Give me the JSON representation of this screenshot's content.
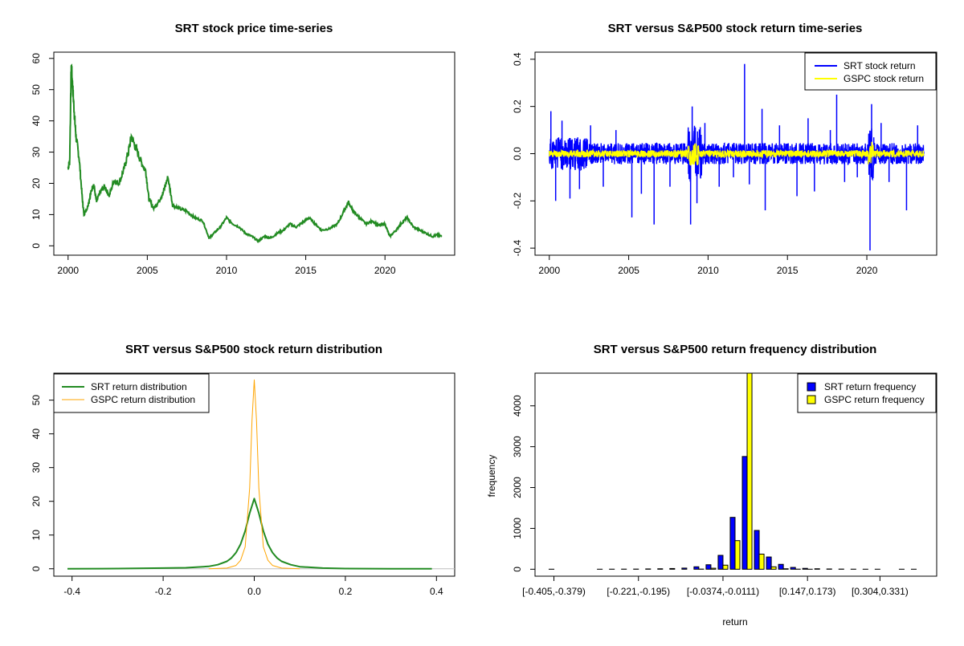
{
  "colors": {
    "price": "#228B22",
    "srt_return": "#0000FF",
    "gspc_return": "#FFFF00",
    "srt_density": "#228B22",
    "gspc_density": "#FFA500",
    "srt_bar": "#0000FF",
    "gspc_bar": "#FFFF00",
    "axis": "#000000"
  },
  "chart_data": [
    {
      "type": "line",
      "title": "SRT stock price time-series",
      "xlabel": "",
      "ylabel": "",
      "xlim": [
        2000,
        2023.6
      ],
      "ylim": [
        0,
        60
      ],
      "x_ticks": [
        "2000",
        "2005",
        "2010",
        "2015",
        "2020"
      ],
      "y_ticks": [
        "0",
        "10",
        "20",
        "30",
        "40",
        "50",
        "60"
      ],
      "series": [
        {
          "x": [
            2000.0,
            2000.1,
            2000.2,
            2000.3,
            2000.4,
            2000.5,
            2000.7,
            2000.9,
            2001.0,
            2001.2,
            2001.4,
            2001.6,
            2001.8,
            2002.0,
            2002.3,
            2002.6,
            2002.9,
            2003.2,
            2003.5,
            2003.8,
            2004.0,
            2004.3,
            2004.6,
            2004.9,
            2005.1,
            2005.4,
            2005.7,
            2006.0,
            2006.3,
            2006.6,
            2007.0,
            2007.5,
            2008.0,
            2008.5,
            2008.9,
            2009.2,
            2009.6,
            2010.0,
            2010.4,
            2010.8,
            2011.2,
            2011.6,
            2012.0,
            2012.4,
            2012.8,
            2013.2,
            2013.6,
            2014.0,
            2014.4,
            2014.8,
            2015.2,
            2015.6,
            2016.0,
            2016.5,
            2017.0,
            2017.4,
            2017.7,
            2018.0,
            2018.4,
            2018.8,
            2019.2,
            2019.6,
            2020.0,
            2020.3,
            2020.7,
            2021.0,
            2021.4,
            2021.8,
            2022.2,
            2022.6,
            2023.0,
            2023.3,
            2023.6
          ],
          "y": [
            25,
            27,
            58,
            50,
            42,
            35,
            28,
            15,
            10,
            12,
            16,
            20,
            14,
            17,
            19,
            16,
            21,
            20,
            24,
            30,
            35,
            31,
            27,
            24,
            15,
            12,
            14,
            17,
            22,
            13,
            12,
            11,
            9,
            8,
            2.5,
            4,
            6,
            9,
            7,
            6,
            4,
            3,
            1.5,
            3,
            2.5,
            4,
            5,
            7,
            6,
            7.5,
            9,
            7,
            5,
            5.5,
            7,
            11,
            14,
            11,
            9,
            7,
            8,
            6.5,
            7,
            3,
            5,
            7,
            9,
            6,
            5,
            4,
            3,
            3.5,
            3
          ]
        }
      ]
    },
    {
      "type": "line",
      "title": "SRT versus S&P500 stock return time-series",
      "xlabel": "",
      "ylabel": "",
      "xlim": [
        2000,
        2023.6
      ],
      "ylim": [
        -0.4,
        0.4
      ],
      "x_ticks": [
        "2000",
        "2005",
        "2010",
        "2015",
        "2020"
      ],
      "y_ticks": [
        "-0.4",
        "-0.2",
        "0.0",
        "0.2",
        "0.4"
      ],
      "legend": "top-right",
      "series": [
        {
          "name": "SRT stock return",
          "style": "blue noisy return band, typical amplitude about ±0.05, spikes to about ±0.25, extremes 0.38 (2012.3) and -0.41 (2020.2)"
        },
        {
          "name": "GSPC stock return",
          "style": "yellow return band, typical amplitude about ±0.015, bursts near 2008.9 and 2020.2"
        }
      ]
    },
    {
      "type": "line",
      "title": "SRT versus S&P500 stock return distribution",
      "xlabel": "",
      "ylabel": "",
      "xlim": [
        -0.42,
        0.42
      ],
      "ylim": [
        0,
        57
      ],
      "x_ticks": [
        "-0.4",
        "-0.2",
        "0.0",
        "0.2",
        "0.4"
      ],
      "y_ticks": [
        "0",
        "10",
        "20",
        "30",
        "40",
        "50"
      ],
      "legend": "top-left",
      "series": [
        {
          "name": "SRT return distribution",
          "x": [
            -0.41,
            -0.3,
            -0.2,
            -0.15,
            -0.1,
            -0.08,
            -0.06,
            -0.05,
            -0.04,
            -0.03,
            -0.02,
            -0.01,
            0.0,
            0.01,
            0.02,
            0.03,
            0.04,
            0.05,
            0.06,
            0.08,
            0.1,
            0.15,
            0.2,
            0.3,
            0.39
          ],
          "y": [
            0,
            0.05,
            0.2,
            0.3,
            0.7,
            1.2,
            2.2,
            3.2,
            4.8,
            7.3,
            11.2,
            16.5,
            20.8,
            16.5,
            11.2,
            7.3,
            4.8,
            3.2,
            2.2,
            1.2,
            0.6,
            0.2,
            0.05,
            0,
            0
          ]
        },
        {
          "name": "GSPC return distribution",
          "x": [
            -0.1,
            -0.06,
            -0.04,
            -0.03,
            -0.02,
            -0.01,
            -0.005,
            0.0,
            0.005,
            0.01,
            0.02,
            0.03,
            0.04,
            0.06,
            0.1
          ],
          "y": [
            0,
            0.2,
            1,
            2.5,
            6.5,
            24,
            44,
            56,
            44,
            24,
            6.5,
            2.5,
            1,
            0.2,
            0
          ]
        }
      ]
    },
    {
      "type": "bar",
      "title": "SRT versus S&P500 return frequency distribution",
      "xlabel": "return",
      "ylabel": "frequency",
      "ylim": [
        0,
        4800
      ],
      "y_ticks": [
        "0",
        "1000",
        "2000",
        "3000",
        "4000"
      ],
      "x_tick_labels": [
        "[-0.405,-0.379)",
        "[-0.221,-0.195)",
        "[-0.0374,-0.0111)",
        "[0.147,0.173)",
        "[0.304,0.331)"
      ],
      "x_tick_bins": [
        0,
        7,
        14,
        21,
        27
      ],
      "legend": "top-right",
      "series": [
        {
          "name": "SRT return frequency",
          "values": [
            1,
            0,
            0,
            0,
            1,
            2,
            3,
            4,
            8,
            12,
            18,
            28,
            60,
            110,
            340,
            1270,
            2760,
            950,
            300,
            120,
            45,
            22,
            12,
            7,
            4,
            2,
            1,
            1,
            0,
            1,
            1
          ]
        },
        {
          "name": "GSPC return frequency",
          "values": [
            0,
            0,
            0,
            0,
            0,
            0,
            0,
            0,
            0,
            0,
            0,
            0,
            4,
            25,
            100,
            700,
            4800,
            370,
            60,
            12,
            3,
            1,
            0,
            0,
            0,
            0,
            0,
            0,
            0,
            0,
            0
          ]
        }
      ]
    }
  ]
}
